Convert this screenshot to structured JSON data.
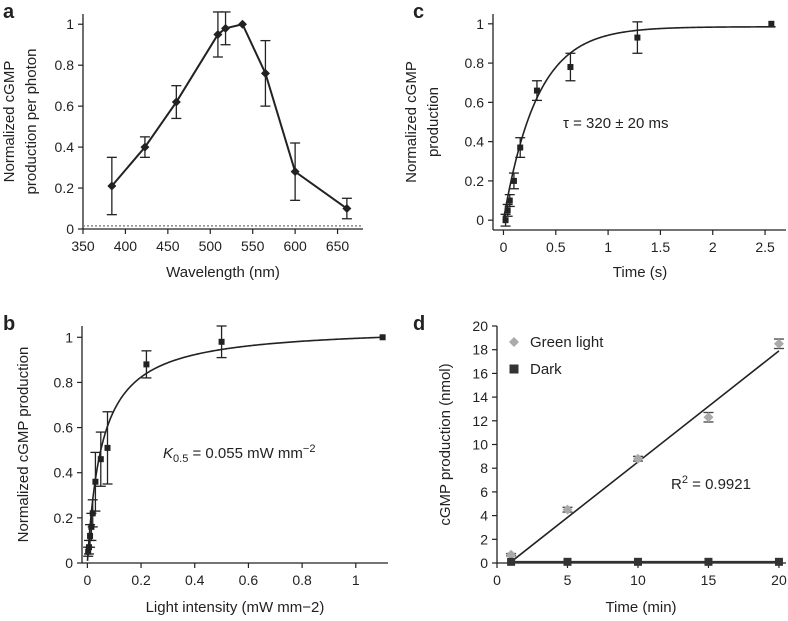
{
  "chart_data": [
    {
      "panel": "a",
      "type": "line",
      "xlabel": "Wavelength (nm)",
      "ylabel": [
        "Normalized cGMP",
        "production per photon"
      ],
      "xlim": [
        350,
        680
      ],
      "ylim": [
        0,
        1.05
      ],
      "xticks": [
        350,
        400,
        450,
        500,
        550,
        600,
        650
      ],
      "yticks": [
        0,
        0.2,
        0.4,
        0.6,
        0.8,
        1
      ],
      "x": [
        384,
        423,
        460,
        509,
        518,
        538,
        565,
        600,
        661
      ],
      "y": [
        0.21,
        0.4,
        0.62,
        0.95,
        0.98,
        1.0,
        0.76,
        0.28,
        0.1
      ],
      "yerr": [
        0.14,
        0.05,
        0.08,
        0.11,
        0.08,
        0.0,
        0.16,
        0.14,
        0.05
      ],
      "baseline": 0.015,
      "marker": "diamond"
    },
    {
      "panel": "b",
      "type": "scatter",
      "xlabel": "Light intensity (mW mm−2)",
      "ylabel": "Normalized cGMP production",
      "xlim": [
        -0.02,
        1.12
      ],
      "ylim": [
        0,
        1.05
      ],
      "xticks": [
        0,
        0.2,
        0.4,
        0.6,
        0.8,
        1
      ],
      "yticks": [
        0,
        0.2,
        0.4,
        0.6,
        0.8,
        1
      ],
      "x": [
        0.003,
        0.006,
        0.01,
        0.015,
        0.02,
        0.03,
        0.05,
        0.075,
        0.22,
        0.5,
        1.1
      ],
      "y": [
        0.05,
        0.07,
        0.12,
        0.16,
        0.22,
        0.36,
        0.46,
        0.51,
        0.88,
        0.98,
        1.0
      ],
      "yerr": [
        0.02,
        0.03,
        0.05,
        0.06,
        0.06,
        0.13,
        0.12,
        0.16,
        0.06,
        0.07,
        0.0
      ],
      "fit": "hyperbolic",
      "K05": 0.055,
      "annotation": {
        "label": "K",
        "sub": "0.5",
        "rest": " = 0.055 mW mm",
        "sup": "−2"
      },
      "marker": "square"
    },
    {
      "panel": "c",
      "type": "scatter",
      "xlabel": "Time (s)",
      "ylabel": [
        "Normalized cGMP",
        "production"
      ],
      "xlim": [
        -0.1,
        2.7
      ],
      "ylim": [
        -0.05,
        1.05
      ],
      "xticks": [
        0,
        0.5,
        1,
        1.5,
        2,
        2.5
      ],
      "yticks": [
        0,
        0.2,
        0.4,
        0.6,
        0.8,
        1
      ],
      "x": [
        0.02,
        0.04,
        0.06,
        0.1,
        0.16,
        0.32,
        0.64,
        1.28,
        2.56
      ],
      "y": [
        0.0,
        0.05,
        0.1,
        0.2,
        0.37,
        0.66,
        0.78,
        0.93,
        1.0
      ],
      "yerr": [
        0.03,
        0.03,
        0.03,
        0.04,
        0.05,
        0.05,
        0.07,
        0.08,
        0.0
      ],
      "fit": "exponential",
      "tau": 0.32,
      "annotation": "τ = 320 ± 20 ms",
      "marker": "square"
    },
    {
      "panel": "d",
      "type": "scatter",
      "xlabel": "Time (min)",
      "ylabel": "cGMP production (nmol)",
      "xlim": [
        0,
        20.5
      ],
      "ylim": [
        0,
        20
      ],
      "xticks": [
        0,
        5,
        10,
        15,
        20
      ],
      "yticks": [
        0,
        2,
        4,
        6,
        8,
        10,
        12,
        14,
        16,
        18,
        20
      ],
      "series": [
        {
          "name": "Green light",
          "color": "#aaaaaa",
          "marker": "diamond",
          "x": [
            1,
            5,
            10,
            15,
            20
          ],
          "y": [
            0.7,
            4.5,
            8.8,
            12.3,
            18.5
          ],
          "yerr": [
            0.1,
            0.2,
            0.2,
            0.4,
            0.4
          ]
        },
        {
          "name": "Dark",
          "color": "#333333",
          "marker": "square",
          "x": [
            1,
            5,
            10,
            15,
            20
          ],
          "y": [
            0.1,
            0.1,
            0.1,
            0.1,
            0.1
          ],
          "yerr": [
            0,
            0,
            0,
            0,
            0
          ]
        }
      ],
      "fit_line": {
        "x": [
          1,
          20
        ],
        "y": [
          0.1,
          17.9
        ]
      },
      "annotation": {
        "label": "R",
        "sup": "2",
        "rest": " = 0.9921"
      },
      "legend": "top-left"
    }
  ],
  "panel_labels": [
    "a",
    "b",
    "c",
    "d"
  ],
  "colors": {
    "ink": "#222222",
    "light_marker": "#aaaaaa",
    "dark_marker": "#333333",
    "baseline": "#888888"
  }
}
